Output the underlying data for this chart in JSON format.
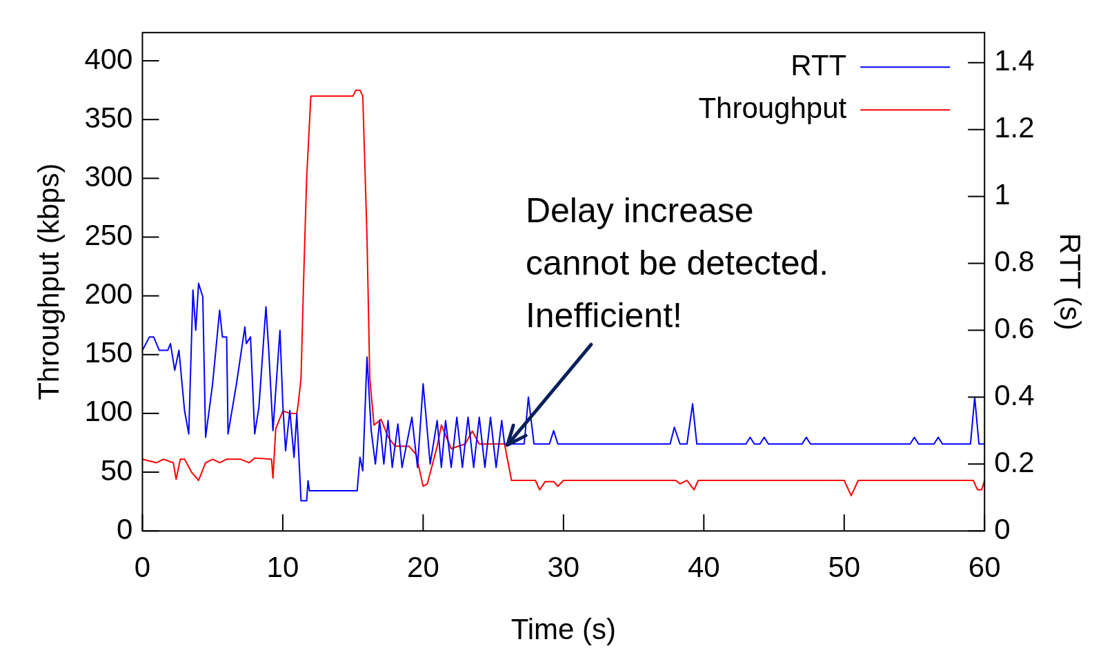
{
  "chart_data": {
    "type": "line",
    "xlabel": "Time (s)",
    "ylabel": "Throughput (kbps)",
    "y2label": "RTT (s)",
    "xlim": [
      0,
      60
    ],
    "xticks": [
      0,
      10,
      20,
      30,
      40,
      50,
      60
    ],
    "ylim": [
      0,
      424
    ],
    "yticks": [
      0,
      50,
      100,
      150,
      200,
      250,
      300,
      350,
      400
    ],
    "y2lim": [
      0,
      1.49
    ],
    "y2ticks": [
      0,
      0.2,
      0.4,
      0.6,
      0.8,
      1,
      1.2,
      1.4
    ],
    "grid": false,
    "legend": "top right",
    "marker": "none",
    "line_style": "solid",
    "annotations": [
      {
        "text": "Delay increase\ncannot be detected.\nInefficient!",
        "x": 26,
        "y": 73
      }
    ],
    "series": [
      {
        "name": "RTT",
        "color": "#0000ff",
        "axis": "y2",
        "x": [
          0,
          0.5,
          0.8,
          1.2,
          1.8,
          2,
          2.3,
          2.6,
          3,
          3.3,
          3.6,
          3.8,
          4,
          4.3,
          4.5,
          5,
          5.5,
          5.7,
          6,
          6.1,
          6.7,
          7.3,
          7.4,
          7.7,
          8,
          8.3,
          8.8,
          9,
          9.3,
          9.8,
          10,
          10.2,
          10.5,
          10.8,
          11,
          11.3,
          11.7,
          11.8,
          11.9,
          15.3,
          15.5,
          15.7,
          16,
          16.3,
          16.6,
          16.9,
          17.2,
          17.5,
          17.8,
          18.2,
          18.5,
          19.2,
          19.6,
          20,
          20.5,
          21,
          21.3,
          21.6,
          22,
          22.4,
          22.8,
          23.2,
          23.6,
          24,
          24.4,
          24.8,
          25.2,
          25.6,
          25.8,
          27.2,
          27.5,
          27.9,
          29,
          29.3,
          29.6,
          37.6,
          37.9,
          38.3,
          38.8,
          39.2,
          39.5,
          43,
          43.3,
          43.6,
          44,
          44.3,
          44.6,
          47,
          47.3,
          47.6,
          54.7,
          55,
          55.3,
          56.4,
          56.7,
          57,
          59,
          59.3,
          59.6,
          60
        ],
        "values": [
          0.54,
          0.58,
          0.58,
          0.54,
          0.54,
          0.56,
          0.48,
          0.54,
          0.36,
          0.29,
          0.72,
          0.6,
          0.74,
          0.7,
          0.28,
          0.44,
          0.66,
          0.58,
          0.58,
          0.29,
          0.44,
          0.61,
          0.56,
          0.58,
          0.29,
          0.37,
          0.67,
          0.54,
          0.3,
          0.6,
          0.38,
          0.24,
          0.36,
          0.22,
          0.35,
          0.09,
          0.09,
          0.15,
          0.12,
          0.12,
          0.22,
          0.18,
          0.52,
          0.3,
          0.2,
          0.33,
          0.2,
          0.33,
          0.19,
          0.32,
          0.19,
          0.34,
          0.19,
          0.44,
          0.2,
          0.33,
          0.19,
          0.33,
          0.19,
          0.34,
          0.19,
          0.34,
          0.19,
          0.34,
          0.19,
          0.34,
          0.19,
          0.33,
          0.26,
          0.26,
          0.4,
          0.26,
          0.26,
          0.3,
          0.26,
          0.26,
          0.31,
          0.26,
          0.26,
          0.38,
          0.26,
          0.26,
          0.28,
          0.26,
          0.26,
          0.28,
          0.26,
          0.26,
          0.28,
          0.26,
          0.26,
          0.28,
          0.26,
          0.26,
          0.28,
          0.26,
          0.26,
          0.4,
          0.26,
          0.26
        ]
      },
      {
        "name": "Throughput",
        "color": "#ff0000",
        "x": [
          0,
          1,
          1.5,
          2.2,
          2.4,
          2.7,
          3,
          3.5,
          4,
          4.5,
          5,
          5.5,
          6,
          7,
          7.6,
          8,
          9.2,
          9.3,
          9.5,
          10,
          10.5,
          11,
          11.1,
          11.3,
          11.5,
          11.7,
          12,
          15,
          15.2,
          15.5,
          15.7,
          16,
          16.2,
          16.5,
          17,
          17.5,
          18,
          19,
          19.5,
          20,
          20.3,
          21,
          21.3,
          22,
          23,
          23.5,
          24,
          25.8,
          26.3,
          28,
          28.3,
          28.7,
          29.3,
          29.6,
          30,
          38,
          38.3,
          38.8,
          39.3,
          39.6,
          50,
          50.5,
          51,
          59.2,
          59.5,
          59.8,
          60
        ],
        "values": [
          61,
          58,
          61,
          58,
          44,
          61,
          61,
          50,
          43,
          58,
          61,
          58,
          61,
          61,
          58,
          62,
          61,
          45,
          87,
          102,
          100,
          100,
          108,
          130,
          220,
          300,
          370,
          370,
          375,
          375,
          370,
          250,
          130,
          90,
          95,
          80,
          72,
          72,
          65,
          38,
          40,
          72,
          90,
          70,
          74,
          85,
          74,
          74,
          43,
          43,
          35,
          42,
          42,
          38,
          43,
          43,
          40,
          43,
          35,
          43,
          43,
          30,
          43,
          43,
          35,
          35,
          43
        ]
      }
    ]
  }
}
